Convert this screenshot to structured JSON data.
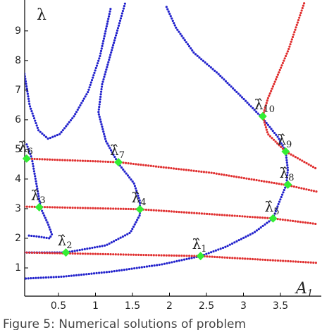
{
  "chart_data": {
    "type": "line",
    "y_label": "λ",
    "x_label": "A",
    "x_label_sub": "1",
    "caption": "Figure 5: Numerical solutions of problem",
    "xlim": [
      0.04,
      4.0
    ],
    "ylim": [
      0,
      9.9
    ],
    "xticks": [
      0.5,
      1,
      1.5,
      2,
      2.5,
      3,
      3.5
    ],
    "yticks": [
      1,
      2,
      3,
      4,
      5,
      6,
      7,
      8,
      9
    ],
    "series": [
      {
        "color": "#2222cc",
        "x": [
          1.96,
          2.09,
          2.33,
          2.66,
          3.0,
          3.26,
          3.47,
          3.57,
          3.6,
          3.58,
          3.47,
          3.4,
          3.14,
          2.76,
          2.42,
          1.9,
          1.23,
          0.57,
          0.04
        ],
        "y": [
          9.81,
          9.1,
          8.26,
          7.55,
          6.71,
          6.05,
          5.4,
          4.93,
          4.33,
          3.81,
          3.14,
          2.67,
          2.19,
          1.71,
          1.4,
          1.12,
          0.88,
          0.71,
          0.64
        ]
      },
      {
        "color": "#2222cc",
        "x": [
          0.04,
          0.11,
          0.23,
          0.36,
          0.52,
          0.71,
          0.9,
          1.06,
          1.21
        ],
        "y": [
          7.55,
          6.48,
          5.64,
          5.36,
          5.52,
          6.12,
          6.95,
          8.14,
          9.81
        ]
      },
      {
        "color": "#2222cc",
        "x": [
          0.07,
          0.14,
          0.2,
          0.26,
          0.36,
          0.41,
          0.38,
          0.19,
          0.07
        ],
        "y": [
          5.17,
          4.69,
          3.86,
          3.02,
          2.48,
          2.14,
          2.0,
          2.07,
          2.1
        ]
      },
      {
        "color": "#2222cc",
        "x": [
          0.07,
          0.6,
          1.14,
          1.47,
          1.6,
          1.6,
          1.52,
          1.31,
          1.14,
          1.04,
          1.09,
          1.25,
          1.4
        ],
        "y": [
          1.52,
          1.52,
          1.76,
          2.19,
          2.79,
          3.26,
          3.86,
          4.52,
          5.29,
          6.24,
          7.19,
          8.62,
          9.93
        ]
      },
      {
        "color": "#e03030",
        "x": [
          0.04,
          1.31,
          2.57,
          3.6,
          4.0
        ],
        "y": [
          4.69,
          4.57,
          4.21,
          3.79,
          3.57
        ]
      },
      {
        "color": "#e03030",
        "x": [
          0.04,
          1.6,
          3.4,
          4.0
        ],
        "y": [
          3.07,
          2.98,
          2.67,
          2.48
        ]
      },
      {
        "color": "#e03030",
        "x": [
          0.04,
          2.42,
          4.0
        ],
        "y": [
          1.52,
          1.4,
          1.17
        ]
      },
      {
        "color": "#e03030",
        "x": [
          3.82,
          3.61,
          3.33,
          3.26,
          3.33,
          3.57,
          4.0
        ],
        "y": [
          9.93,
          8.38,
          6.71,
          6.12,
          5.52,
          4.93,
          4.33
        ]
      }
    ],
    "point_color": "#33ee33",
    "points": [
      {
        "symbol": "λ̂",
        "index": "1",
        "x": 2.42,
        "y": 1.4
      },
      {
        "symbol": "λ̂",
        "index": "2",
        "x": 0.6,
        "y": 1.52
      },
      {
        "symbol": "λ̂",
        "index": "3",
        "x": 0.24,
        "y": 3.05
      },
      {
        "symbol": "λ̂",
        "index": "4",
        "x": 1.6,
        "y": 2.98
      },
      {
        "symbol": "λ̂",
        "index": "5",
        "x": 3.4,
        "y": 2.67
      },
      {
        "symbol": "λ̂",
        "index": "6",
        "x": 0.07,
        "y": 4.69
      },
      {
        "symbol": "λ̂",
        "index": "7",
        "x": 1.31,
        "y": 4.57
      },
      {
        "symbol": "λ̂",
        "index": "8",
        "x": 3.6,
        "y": 3.81
      },
      {
        "symbol": "λ̂",
        "index": "9",
        "x": 3.57,
        "y": 4.93
      },
      {
        "symbol": "λ̂",
        "index": "10",
        "x": 3.26,
        "y": 6.12
      }
    ]
  }
}
